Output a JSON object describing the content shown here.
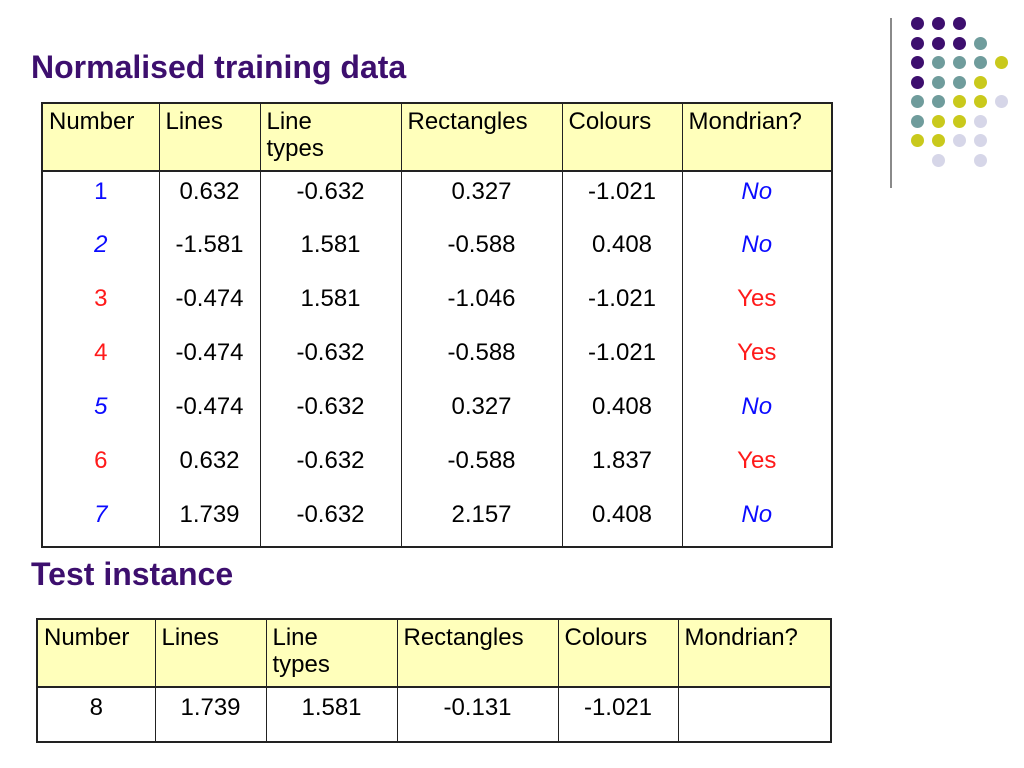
{
  "title": "Normalised training data",
  "test_title": "Test instance",
  "colors": {
    "title": "#3d0f6e",
    "header_bg": "#ffffbb",
    "no_label": "#0b0bff",
    "yes_label": "#ff1a1a",
    "dot_purple": "#3d0f6e",
    "dot_teal": "#6f9c9c",
    "dot_yellow": "#c9c91c",
    "dot_lavender": "#d6d6e8"
  },
  "decoration": {
    "dot_colors": [
      [
        "purple",
        "purple",
        "purple",
        "",
        ""
      ],
      [
        "purple",
        "purple",
        "purple",
        "teal",
        ""
      ],
      [
        "purple",
        "teal",
        "teal",
        "teal",
        "yellow"
      ],
      [
        "purple",
        "teal",
        "teal",
        "yellow",
        ""
      ],
      [
        "teal",
        "teal",
        "yellow",
        "yellow",
        "lavender"
      ],
      [
        "teal",
        "yellow",
        "yellow",
        "lavender",
        ""
      ],
      [
        "yellow",
        "yellow",
        "lavender",
        "lavender",
        ""
      ],
      [
        "",
        "lavender",
        "",
        "lavender",
        ""
      ]
    ]
  },
  "training_table": {
    "headers": [
      "Number",
      "Lines",
      "Line types",
      "Rectangles",
      "Colours",
      "Mondrian?"
    ],
    "rows": [
      [
        "1",
        "0.632",
        "-0.632",
        "0.327",
        "-1.021",
        "No"
      ],
      [
        "2",
        "-1.581",
        "1.581",
        "-0.588",
        "0.408",
        "No"
      ],
      [
        "3",
        "-0.474",
        "1.581",
        "-1.046",
        "-1.021",
        "Yes"
      ],
      [
        "4",
        "-0.474",
        "-0.632",
        "-0.588",
        "-1.021",
        "Yes"
      ],
      [
        "5",
        "-0.474",
        "-0.632",
        "0.327",
        "0.408",
        "No"
      ],
      [
        "6",
        "0.632",
        "-0.632",
        "-0.588",
        "1.837",
        "Yes"
      ],
      [
        "7",
        "1.739",
        "-0.632",
        "2.157",
        "0.408",
        "No"
      ]
    ]
  },
  "test_table": {
    "headers": [
      "Number",
      "Lines",
      "Line types",
      "Rectangles",
      "Colours",
      "Mondrian?"
    ],
    "rows": [
      [
        "8",
        "1.739",
        "1.581",
        "-0.131",
        "-1.021",
        ""
      ]
    ]
  }
}
